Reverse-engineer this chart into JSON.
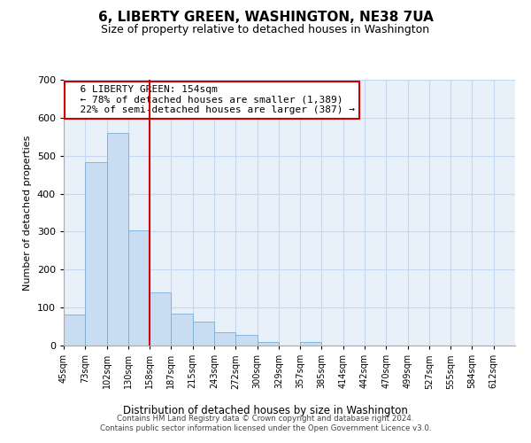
{
  "title": "6, LIBERTY GREEN, WASHINGTON, NE38 7UA",
  "subtitle": "Size of property relative to detached houses in Washington",
  "xlabel": "Distribution of detached houses by size in Washington",
  "ylabel": "Number of detached properties",
  "bar_color": "#c8ddf2",
  "bar_edge_color": "#7aadd4",
  "vline_x": 4,
  "vline_color": "#cc0000",
  "tick_labels": [
    "45sqm",
    "73sqm",
    "102sqm",
    "130sqm",
    "158sqm",
    "187sqm",
    "215sqm",
    "243sqm",
    "272sqm",
    "300sqm",
    "329sqm",
    "357sqm",
    "385sqm",
    "414sqm",
    "442sqm",
    "470sqm",
    "499sqm",
    "527sqm",
    "555sqm",
    "584sqm",
    "612sqm"
  ],
  "bar_heights": [
    82,
    484,
    560,
    303,
    139,
    85,
    63,
    35,
    29,
    10,
    0,
    10,
    0,
    0,
    0,
    0,
    0,
    0,
    0,
    0,
    0
  ],
  "ylim": [
    0,
    700
  ],
  "yticks": [
    0,
    100,
    200,
    300,
    400,
    500,
    600,
    700
  ],
  "annotation_title": "6 LIBERTY GREEN: 154sqm",
  "annotation_line1": "← 78% of detached houses are smaller (1,389)",
  "annotation_line2": "22% of semi-detached houses are larger (387) →",
  "annotation_box_color": "#ffffff",
  "annotation_box_edge": "#cc0000",
  "footer_line1": "Contains HM Land Registry data © Crown copyright and database right 2024.",
  "footer_line2": "Contains public sector information licensed under the Open Government Licence v3.0.",
  "bg_color": "#e8f0fa",
  "grid_color": "#c5d8f0"
}
